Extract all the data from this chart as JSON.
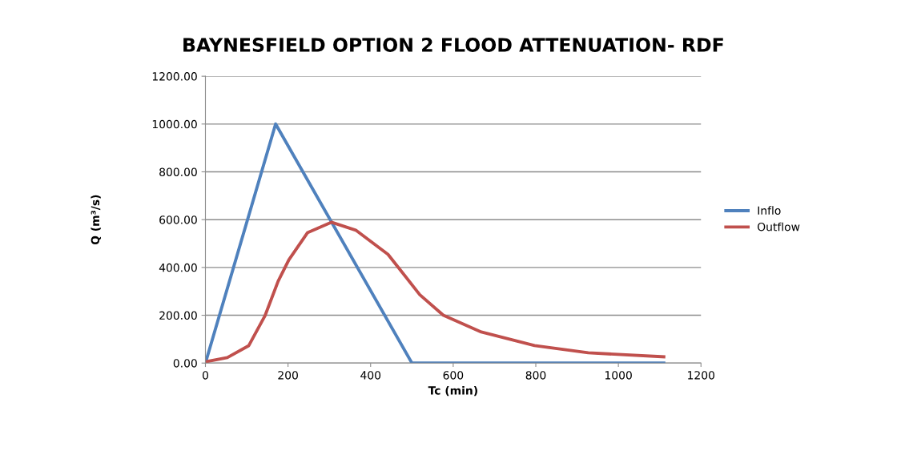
{
  "chart_data": {
    "type": "line",
    "title": "BAYNESFIELD OPTION 2 FLOOD ATTENUATION- RDF",
    "xlabel": "Tc (min)",
    "ylabel": "Q (m³/s)",
    "xlim": [
      0,
      1200
    ],
    "xticks": [
      0,
      200,
      400,
      600,
      800,
      1000,
      1200
    ],
    "ylim": [
      0,
      1200
    ],
    "yticks": [
      {
        "value": 0,
        "label": "0.00"
      },
      {
        "value": 200,
        "label": "200.00"
      },
      {
        "value": 400,
        "label": "400.00"
      },
      {
        "value": 600,
        "label": "600.00"
      },
      {
        "value": 800,
        "label": "800.00"
      },
      {
        "value": 1000,
        "label": "1000.00"
      },
      {
        "value": 1200,
        "label": "1200.00"
      }
    ],
    "grid": "y",
    "legend": "right",
    "marker": "none",
    "line_style": "solid",
    "series": [
      {
        "name": "Inflo",
        "color": "#4f81bd",
        "x": [
          0,
          170,
          500,
          1110
        ],
        "values": [
          0,
          1000,
          0,
          0
        ]
      },
      {
        "name": "Outflow",
        "color": "#c0504d",
        "x": [
          0,
          53,
          105,
          144,
          176,
          202,
          247,
          305,
          364,
          442,
          519,
          576,
          610,
          668,
          797,
          927,
          1110
        ],
        "values": [
          5,
          23,
          73,
          197,
          342,
          432,
          545,
          589,
          556,
          455,
          286,
          200,
          174,
          130,
          73,
          43,
          26
        ]
      }
    ]
  }
}
